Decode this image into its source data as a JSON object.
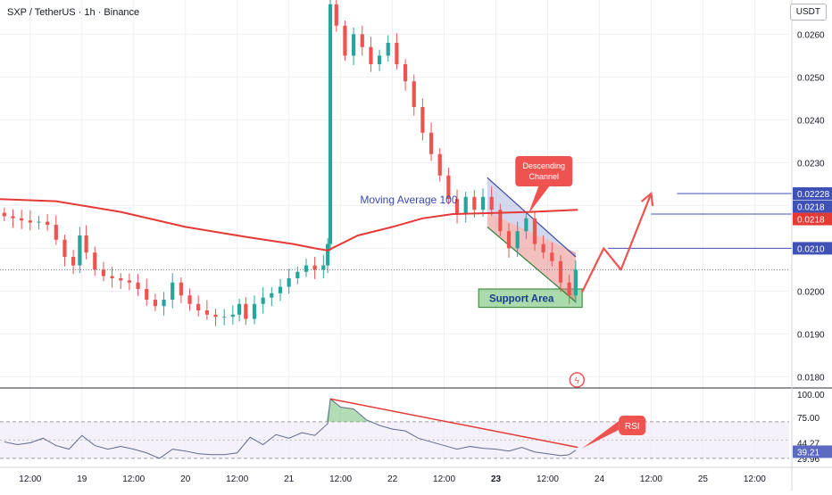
{
  "header": {
    "symbol_line": "SXP / TetherUS · 1h · Binance",
    "currency_button": "USDT"
  },
  "colors": {
    "up": "#26a69a",
    "down": "#ef5350",
    "ma": "#e53935",
    "level_line": "#3f51b5",
    "channel_fill": "#e57373",
    "channel_top_fill": "#9fa8da",
    "support_fill": "#66bb6a",
    "rsi_line": "#5d6b8a",
    "rsi_divergence": "#e53935",
    "projection": "#ef5350"
  },
  "chart_data": [
    {
      "type": "candlestick",
      "title": "",
      "xlabel": "",
      "ylabel": "",
      "ylim": [
        0.0178,
        0.0268
      ],
      "y_ticks": [
        "0.0260",
        "0.0250",
        "0.0240",
        "0.0230",
        "0.0220",
        "0.0210",
        "0.0200",
        "0.0190",
        "0.0180"
      ],
      "x_ticks": [
        "12:00",
        "19",
        "12:00",
        "20",
        "12:00",
        "21",
        "12:00",
        "22",
        "12:00",
        "23",
        "12:00",
        "24",
        "12:00",
        "25",
        "12:00"
      ],
      "x_tick_positions_hours": [
        -36,
        -24,
        -12,
        0,
        12,
        24,
        36,
        48,
        60,
        72,
        84,
        96,
        108,
        120,
        132
      ],
      "x_range_hours": [
        -43,
        140
      ],
      "x_tick_note": "hours relative to 20 00:00",
      "series_close": [
        [
          -42,
          0.02175
        ],
        [
          -40,
          0.0217
        ],
        [
          -38,
          0.02165
        ],
        [
          -36,
          0.0216
        ],
        [
          -34,
          0.02162
        ],
        [
          -32,
          0.02155
        ],
        [
          -30,
          0.0212
        ],
        [
          -28,
          0.0208
        ],
        [
          -26,
          0.0206
        ],
        [
          -24.5,
          0.0213
        ],
        [
          -23,
          0.0209
        ],
        [
          -21,
          0.0205
        ],
        [
          -19,
          0.02035
        ],
        [
          -17,
          0.0203
        ],
        [
          -15,
          0.02025
        ],
        [
          -13,
          0.0202
        ],
        [
          -11,
          0.02005
        ],
        [
          -9,
          0.0198
        ],
        [
          -7,
          0.01965
        ],
        [
          -5,
          0.0198
        ],
        [
          -3,
          0.0202
        ],
        [
          -1,
          0.0199
        ],
        [
          1,
          0.0197
        ],
        [
          3,
          0.01955
        ],
        [
          5,
          0.01945
        ],
        [
          7,
          0.0194
        ],
        [
          9,
          0.0194
        ],
        [
          11,
          0.01945
        ],
        [
          12.5,
          0.0197
        ],
        [
          14,
          0.01935
        ],
        [
          16,
          0.0197
        ],
        [
          18,
          0.01985
        ],
        [
          20,
          0.01995
        ],
        [
          22,
          0.0201
        ],
        [
          24,
          0.0203
        ],
        [
          26,
          0.02045
        ],
        [
          28,
          0.0206
        ],
        [
          30,
          0.0205
        ],
        [
          32,
          0.0206
        ],
        [
          33,
          0.0211
        ],
        [
          33.6,
          0.0267
        ],
        [
          35,
          0.0262
        ],
        [
          37,
          0.0255
        ],
        [
          39,
          0.026
        ],
        [
          41,
          0.0257
        ],
        [
          43,
          0.0253
        ],
        [
          45,
          0.0255
        ],
        [
          47,
          0.0258
        ],
        [
          49,
          0.0253
        ],
        [
          51,
          0.0249
        ],
        [
          53,
          0.0243
        ],
        [
          55,
          0.0237
        ],
        [
          57,
          0.0232
        ],
        [
          59,
          0.0227
        ],
        [
          61,
          0.02215
        ],
        [
          63,
          0.0218
        ],
        [
          65,
          0.0222
        ],
        [
          67,
          0.0219
        ],
        [
          69,
          0.0222
        ],
        [
          71,
          0.0219
        ],
        [
          73,
          0.0214
        ],
        [
          75,
          0.021
        ],
        [
          77,
          0.0214
        ],
        [
          79,
          0.0217
        ],
        [
          81,
          0.0211
        ],
        [
          83,
          0.0209
        ],
        [
          85,
          0.0207
        ],
        [
          87,
          0.0202
        ],
        [
          89,
          0.0199
        ],
        [
          90.5,
          0.0205
        ]
      ],
      "moving_average": {
        "name": "Moving Average 100",
        "points": [
          [
            -43,
            0.02215
          ],
          [
            -30,
            0.0221
          ],
          [
            -15,
            0.02185
          ],
          [
            0,
            0.0215
          ],
          [
            15,
            0.02125
          ],
          [
            25,
            0.0211
          ],
          [
            30,
            0.021
          ],
          [
            33,
            0.02095
          ],
          [
            40,
            0.0213
          ],
          [
            48,
            0.0215
          ],
          [
            55,
            0.0217
          ],
          [
            62,
            0.0218
          ],
          [
            70,
            0.02182
          ],
          [
            80,
            0.02185
          ],
          [
            91,
            0.0219
          ]
        ]
      },
      "levels": [
        {
          "value": 0.02228,
          "label": "0.02228"
        },
        {
          "value": 0.0218,
          "label": "0.0218"
        },
        {
          "value": 0.021,
          "label": "0.0210"
        }
      ],
      "price_label_ma": "0.0218",
      "annotations": {
        "channel_label": "Descending Channel",
        "ma_label": "Moving Average 100",
        "support_label": "Support Area",
        "projection_path": [
          [
            92,
            0.01998
          ],
          [
            97,
            0.021
          ],
          [
            101,
            0.0205
          ],
          [
            108,
            0.02228
          ]
        ]
      }
    },
    {
      "type": "line",
      "title": "",
      "ylim": [
        26,
        105
      ],
      "y_ticks": [
        "100.00",
        "75.00",
        "29.96"
      ],
      "bands": [
        70,
        30
      ],
      "current_values": [
        "44.27",
        "39.21"
      ],
      "badge_label": "RSI",
      "series": [
        {
          "values": [
            [
              -42,
              48
            ],
            [
              -39,
              45
            ],
            [
              -36,
              47
            ],
            [
              -33,
              52
            ],
            [
              -30,
              44
            ],
            [
              -27,
              40
            ],
            [
              -24,
              55
            ],
            [
              -21,
              44
            ],
            [
              -18,
              40
            ],
            [
              -15,
              43
            ],
            [
              -12,
              40
            ],
            [
              -9,
              36
            ],
            [
              -6,
              30
            ],
            [
              -3,
              40
            ],
            [
              0,
              38
            ],
            [
              3,
              35
            ],
            [
              6,
              34
            ],
            [
              9,
              34
            ],
            [
              12,
              36
            ],
            [
              15,
              53
            ],
            [
              18,
              45
            ],
            [
              21,
              56
            ],
            [
              24,
              52
            ],
            [
              27,
              58
            ],
            [
              30,
              55
            ],
            [
              33,
              68
            ],
            [
              33.6,
              95
            ],
            [
              36,
              86
            ],
            [
              39,
              84
            ],
            [
              42,
              72
            ],
            [
              45,
              66
            ],
            [
              48,
              62
            ],
            [
              51,
              60
            ],
            [
              54,
              52
            ],
            [
              57,
              48
            ],
            [
              60,
              44
            ],
            [
              63,
              40
            ],
            [
              66,
              43
            ],
            [
              69,
              41
            ],
            [
              72,
              40
            ],
            [
              75,
              38
            ],
            [
              78,
              42
            ],
            [
              81,
              37
            ],
            [
              84,
              35
            ],
            [
              87,
              33
            ],
            [
              89,
              34
            ],
            [
              90.5,
              39
            ]
          ]
        }
      ],
      "divergence_line": [
        [
          33.6,
          95
        ],
        [
          91,
          42
        ]
      ]
    }
  ]
}
